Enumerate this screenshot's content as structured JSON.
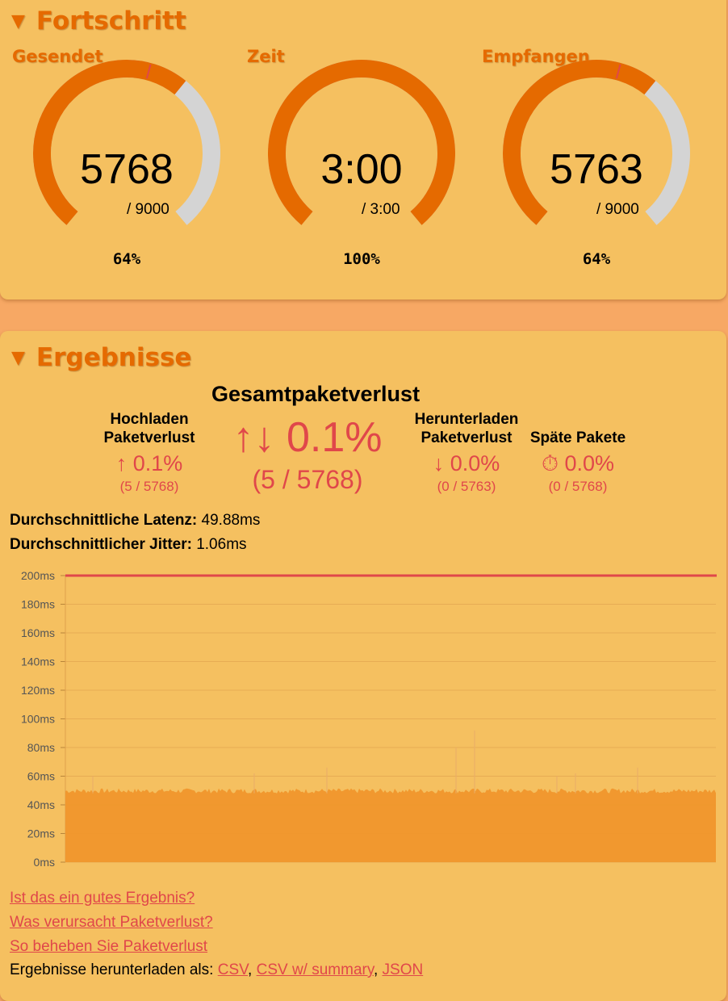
{
  "progress": {
    "title": "Fortschritt",
    "gauges": [
      {
        "label": "Gesendet",
        "value": "5768",
        "total": "/ 9000",
        "percent": "64%",
        "fraction": 0.64
      },
      {
        "label": "Zeit",
        "value": "3:00",
        "total": "/ 3:00",
        "percent": "100%",
        "fraction": 1.0
      },
      {
        "label": "Empfangen",
        "value": "5763",
        "total": "/ 9000",
        "percent": "64%",
        "fraction": 0.64
      }
    ]
  },
  "results": {
    "title": "Ergebnisse",
    "total_loss": {
      "heading": "Gesamtpaketverlust",
      "value": "↑↓ 0.1%",
      "detail": "(5 / 5768)"
    },
    "upload_loss": {
      "heading_line1": "Hochladen",
      "heading_line2": "Paketverlust",
      "value": "↑ 0.1%",
      "detail": "(5 / 5768)"
    },
    "download_loss": {
      "heading_line1": "Herunterladen",
      "heading_line2": "Paketverlust",
      "value": "↓ 0.0%",
      "detail": "(0 / 5763)"
    },
    "late_packets": {
      "heading": "Späte Pakete",
      "value": "⏱ 0.0%",
      "detail": "(0 / 5768)"
    },
    "latency_label": "Durchschnittliche Latenz:",
    "latency_value": " 49.88ms",
    "jitter_label": "Durchschnittlicher Jitter:",
    "jitter_value": " 1.06ms",
    "links": [
      "Ist das ein gutes Ergebnis?",
      "Was verursacht Paketverlust?",
      "So beheben Sie Paketverlust"
    ],
    "download_label": "Ergebnisse herunterladen als: ",
    "download_formats": [
      "CSV",
      "CSV w/ summary",
      "JSON"
    ]
  },
  "colors": {
    "accent": "#e56a00",
    "loss_red": "#e0474a",
    "panel": "#f5c060",
    "background": "#f7a864",
    "gauge_track": "#d4d4d4",
    "series_fill": "#f0962c"
  },
  "chart_data": {
    "type": "area",
    "y_ticks": [
      "0ms",
      "20ms",
      "40ms",
      "60ms",
      "80ms",
      "100ms",
      "120ms",
      "140ms",
      "160ms",
      "180ms",
      "200ms"
    ],
    "ylim": [
      0,
      200
    ],
    "grid": true,
    "series": [
      {
        "kind": "latency",
        "approx_value_ms": 49.88,
        "baseline_ms": 48,
        "occasional_spikes_ms": [
          60,
          62,
          66,
          80,
          92
        ]
      },
      {
        "kind": "threshold",
        "value_ms": 200,
        "color": "#e0474a"
      }
    ]
  }
}
